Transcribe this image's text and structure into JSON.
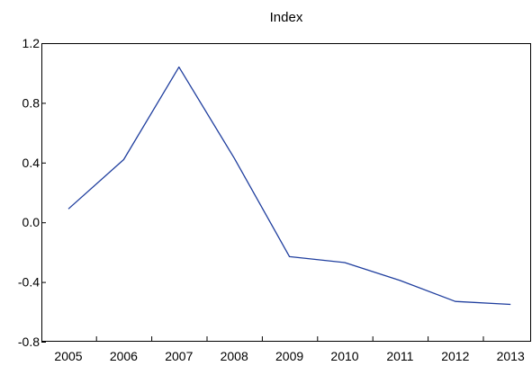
{
  "chart_data": {
    "type": "line",
    "title": "Index",
    "x": [
      "2005",
      "2006",
      "2007",
      "2008",
      "2009",
      "2010",
      "2011",
      "2012",
      "2013"
    ],
    "series": [
      {
        "values": [
          0.09,
          0.42,
          1.04,
          0.43,
          -0.23,
          -0.27,
          -0.39,
          -0.53,
          -0.55
        ],
        "color": "#1f3e9e"
      }
    ],
    "xlabel": "",
    "ylabel": "",
    "ylim": [
      -0.8,
      1.2
    ],
    "yticks": [
      "1.2",
      "0.8",
      "0.4",
      "0.0",
      "-0.4",
      "-0.8"
    ],
    "grid": false,
    "axis_color": "#000000"
  }
}
